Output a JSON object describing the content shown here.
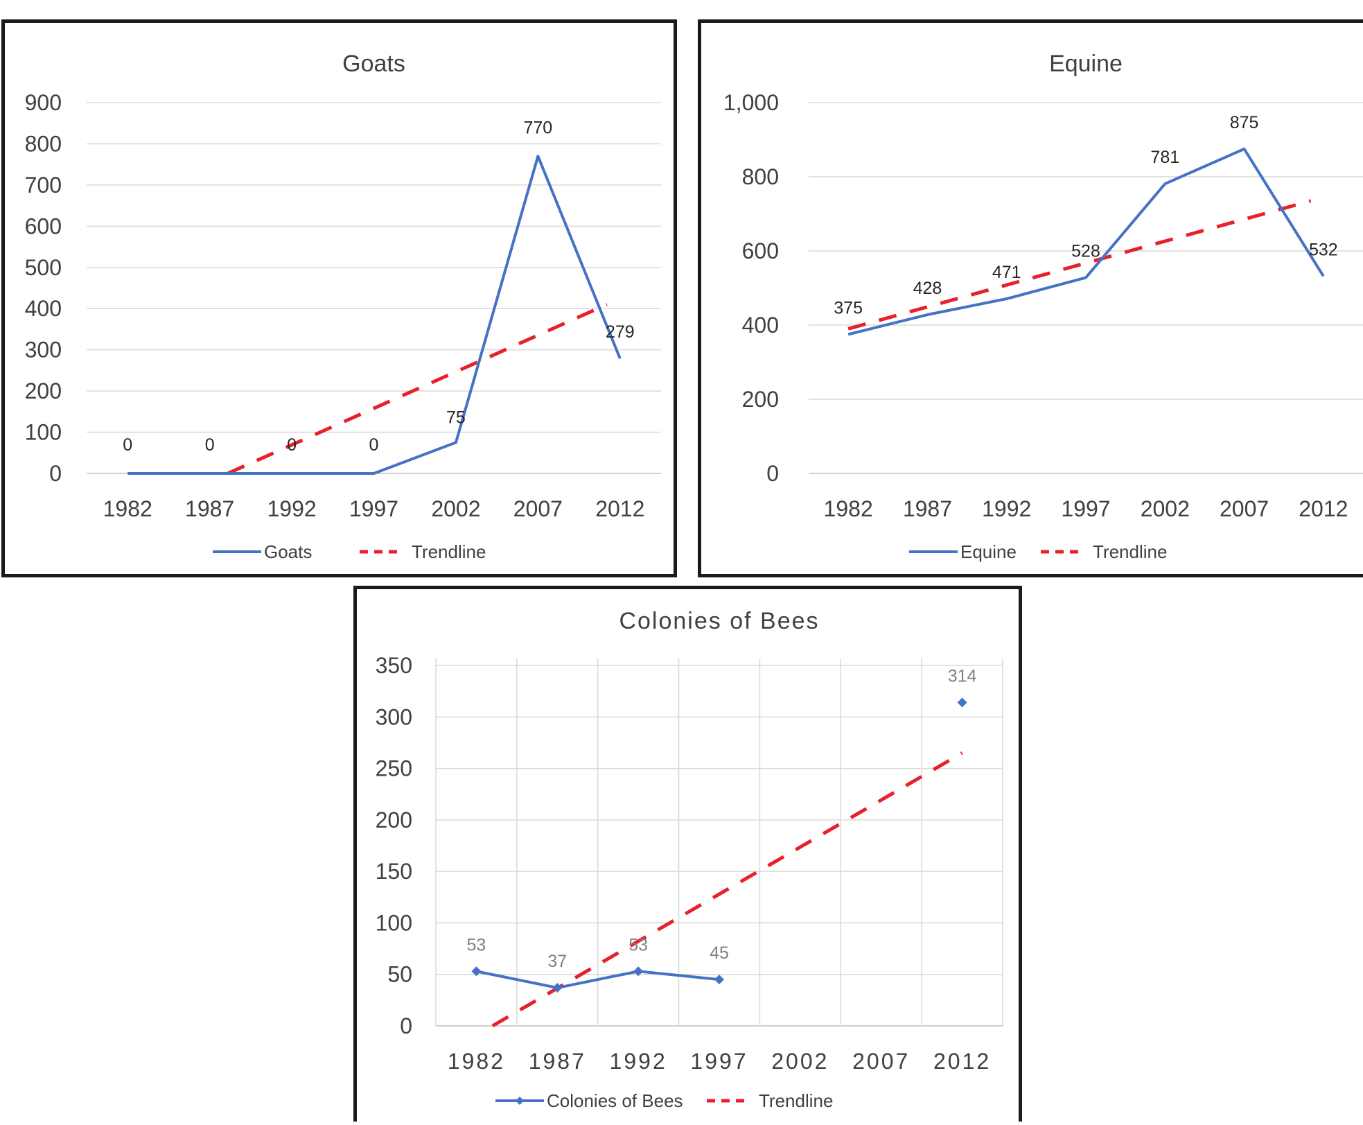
{
  "colors": {
    "series": "#4472c4",
    "trendline": "#e8202a",
    "grid": "#d9d9d9",
    "text": "#404040"
  },
  "chart_data": [
    {
      "id": "goats",
      "type": "line",
      "title": "Goats",
      "categories": [
        "1982",
        "1987",
        "1992",
        "1997",
        "2002",
        "2007",
        "2012"
      ],
      "series": [
        {
          "name": "Goats",
          "values": [
            0,
            0,
            0,
            0,
            75,
            770,
            279
          ],
          "data_labels": [
            "0",
            "0",
            "0",
            "0",
            "75",
            "770",
            "279"
          ],
          "markers": false
        }
      ],
      "trendline": {
        "name": "Trendline",
        "type": "linear",
        "start": [
          1988.1,
          0
        ],
        "end": [
          2011.2,
          410
        ]
      },
      "ylim": [
        0,
        900
      ],
      "yticks": [
        "0",
        "100",
        "200",
        "300",
        "400",
        "500",
        "600",
        "700",
        "800",
        "900"
      ],
      "grid": "horizontal",
      "legend": "bottom",
      "xlabel": "",
      "ylabel": ""
    },
    {
      "id": "equine",
      "type": "line",
      "title": "Equine",
      "categories": [
        "1982",
        "1987",
        "1992",
        "1997",
        "2002",
        "2007",
        "2012"
      ],
      "series": [
        {
          "name": "Equine",
          "values": [
            375,
            428,
            471,
            528,
            781,
            875,
            532
          ],
          "data_labels": [
            "375",
            "428",
            "471",
            "528",
            "781",
            "875",
            "532"
          ],
          "markers": false
        }
      ],
      "trendline": {
        "name": "Trendline",
        "type": "linear",
        "start": [
          1982,
          390
        ],
        "end": [
          2011.2,
          735
        ]
      },
      "ylim": [
        0,
        1000
      ],
      "yticks": [
        "0",
        "200",
        "400",
        "600",
        "800",
        "1,000"
      ],
      "grid": "horizontal",
      "legend": "bottom",
      "xlabel": "",
      "ylabel": ""
    },
    {
      "id": "bees",
      "type": "line",
      "title": "Colonies of Bees",
      "categories": [
        "1982",
        "1987",
        "1992",
        "1997",
        "2002",
        "2007",
        "2012"
      ],
      "series": [
        {
          "name": "Colonies of Bees",
          "values": [
            53,
            37,
            53,
            45,
            null,
            null,
            314
          ],
          "data_labels": [
            "53",
            "37",
            "53",
            "45",
            "",
            "",
            "314"
          ],
          "markers": true
        }
      ],
      "trendline": {
        "name": "Trendline",
        "type": "linear",
        "start": [
          1983.0,
          0
        ],
        "end": [
          2012,
          265
        ]
      },
      "ylim": [
        0,
        350
      ],
      "yticks": [
        "0",
        "50",
        "100",
        "150",
        "200",
        "250",
        "300",
        "350"
      ],
      "grid": "both",
      "legend": "bottom",
      "xlabel": "",
      "ylabel": ""
    }
  ]
}
